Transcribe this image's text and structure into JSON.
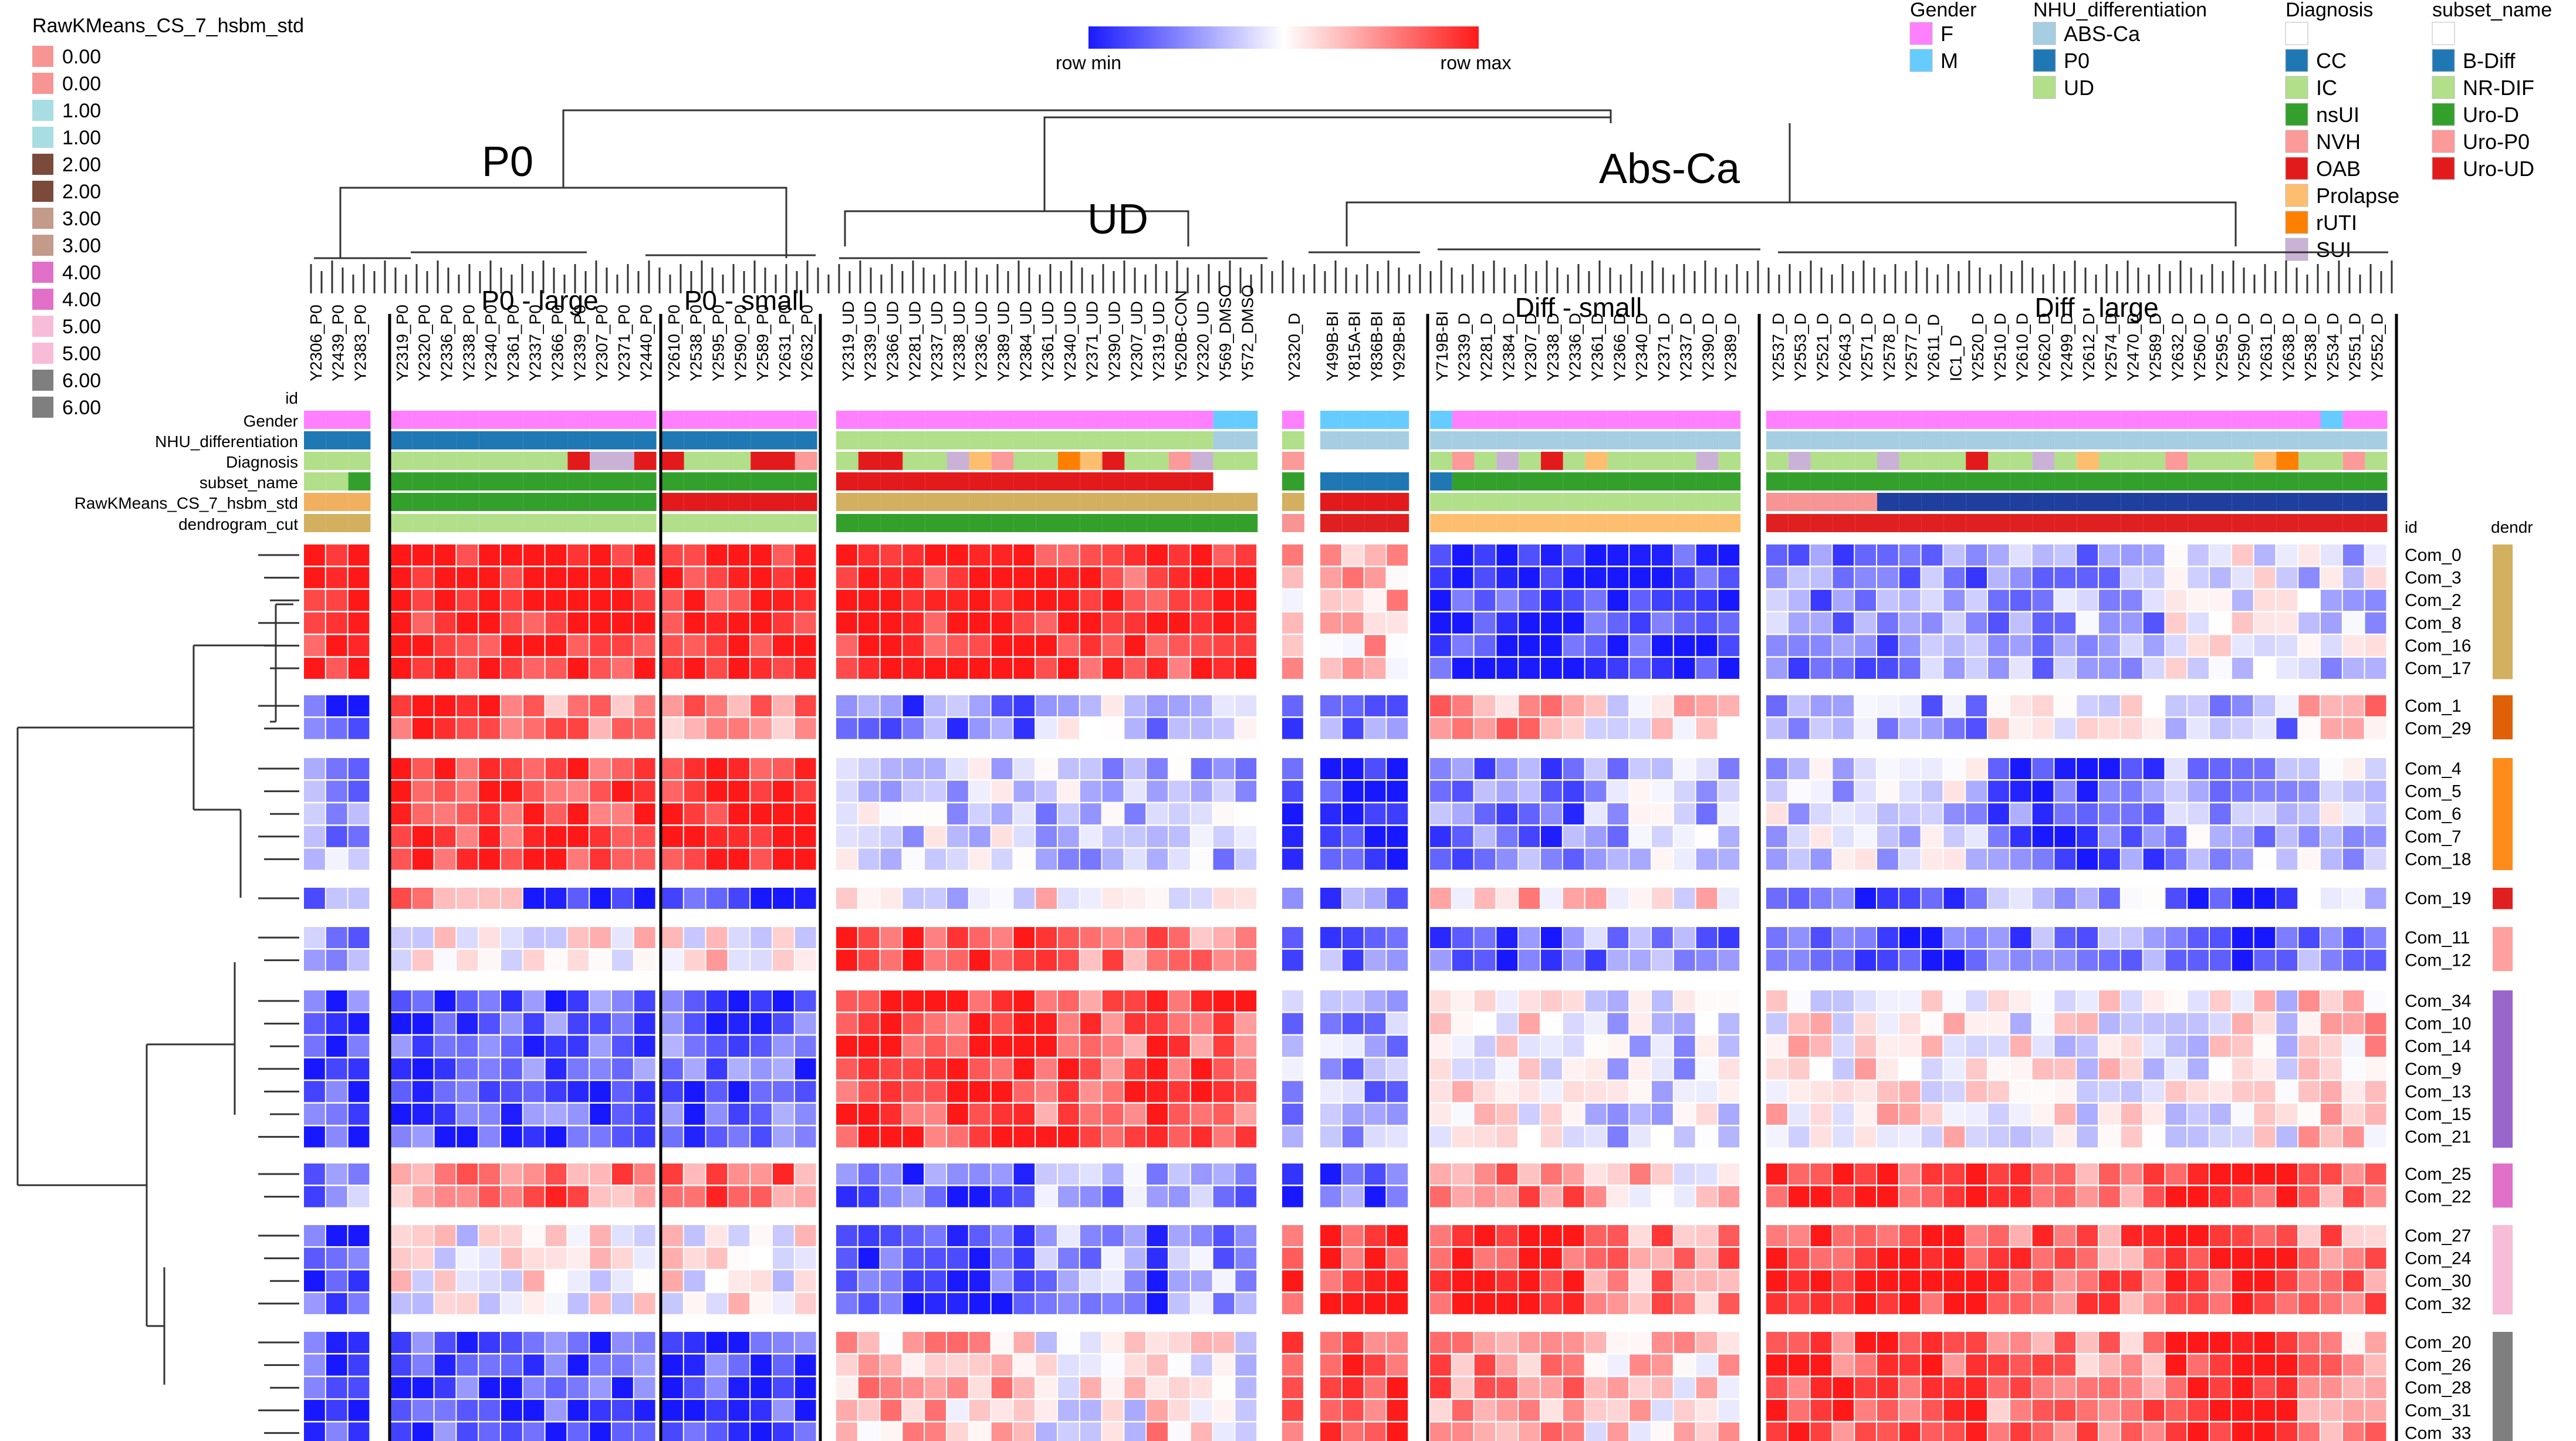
{
  "chart_data": {
    "type": "heatmap",
    "title": "",
    "colorscale": {
      "low_label": "row min",
      "high_label": "row max",
      "low_color": "#1a1aff",
      "mid_color": "#ffffff",
      "high_color": "#ff1a1a"
    },
    "column_header_label": "id",
    "row_header_label": "id",
    "row_annotation_header": "dendr",
    "column_annotation_labels": [
      "id",
      "Gender",
      "NHU_differentiation",
      "Diagnosis",
      "subset_name",
      "RawKMeans_CS_7_hsbm_std",
      "dendrogram_cut"
    ],
    "group_labels": {
      "P0": "P0",
      "UD": "UD",
      "AbsCa": "Abs-Ca"
    },
    "segment_labels": [
      "P0 - large",
      "P0 - small",
      "Diff - small",
      "Diff - large"
    ],
    "col_groups": [
      {
        "label": "",
        "columns": [
          "Y2306_P0",
          "Y2439_P0",
          "Y2383_P0"
        ]
      },
      {
        "label": "P0 - large",
        "columns": [
          "Y2319_P0",
          "Y2320_P0",
          "Y2336_P0",
          "Y2338_P0",
          "Y2340_P0",
          "Y2361_P0",
          "Y2337_P0",
          "Y2366_P0",
          "Y2339_P0",
          "Y2307_P0",
          "Y2371_P0",
          "Y2440_P0"
        ]
      },
      {
        "label": "P0 - small",
        "columns": [
          "Y2610_P0",
          "Y2538_P0",
          "Y2595_P0",
          "Y2590_P0",
          "Y2589_P0",
          "Y2631_P0",
          "Y2632_P0"
        ]
      },
      {
        "label": "",
        "columns": [
          "Y2319_UD",
          "Y2339_UD",
          "Y2366_UD",
          "Y2281_UD",
          "Y2337_UD",
          "Y2338_UD",
          "Y2336_UD",
          "Y2389_UD",
          "Y2384_UD",
          "Y2361_UD",
          "Y2340_UD",
          "Y2371_UD",
          "Y2390_UD",
          "Y2307_UD",
          "Y2319_UD",
          "Y520B-CON",
          "Y2320_UD",
          "Y569_DMSO",
          "Y572_DMSO"
        ]
      },
      {
        "label": "",
        "columns": [
          "Y2320_D"
        ]
      },
      {
        "label": "",
        "columns": [
          "Y499B-BI",
          "Y815A-BI",
          "Y836B-BI",
          "Y929B-BI"
        ]
      },
      {
        "label": "Diff - small",
        "columns": [
          "Y719B-BI",
          "Y2339_D",
          "Y2281_D",
          "Y2384_D",
          "Y2307_D",
          "Y2338_D",
          "Y2336_D",
          "Y2361_D",
          "Y2366_D",
          "Y2340_D",
          "Y2371_D",
          "Y2337_D",
          "Y2390_D",
          "Y2389_D"
        ]
      },
      {
        "label": "Diff - large",
        "columns": [
          "Y2537_D",
          "Y2553_D",
          "Y2521_D",
          "Y2643_D",
          "Y2571_D",
          "Y2578_D",
          "Y2577_D",
          "Y2611_D",
          "IC1_D",
          "Y2520_D",
          "Y2510_D",
          "Y2610_D",
          "Y2620_D",
          "Y2499_D",
          "Y2612_D",
          "Y2574_D",
          "Y2470_D",
          "Y2589_D",
          "Y2632_D",
          "Y2560_D",
          "Y2595_D",
          "Y2590_D",
          "Y2631_D",
          "Y2638_D",
          "Y2538_D",
          "Y2534_D",
          "Y2551_D",
          "Y2552_D"
        ]
      }
    ],
    "row_groups": [
      {
        "rows": [
          "Com_0",
          "Com_3",
          "Com_2",
          "Com_8",
          "Com_16",
          "Com_17"
        ],
        "color": "#d2b060",
        "pattern": [
          1,
          1,
          1,
          1,
          0.9,
          0.3,
          -0.9,
          -0.9,
          -0.5,
          -0.4,
          -0.1,
          -0.2
        ]
      },
      {
        "rows": [
          "Com_1",
          "Com_29"
        ],
        "color": "#e0600a",
        "pattern": [
          -0.8,
          0.8,
          0.5,
          -0.6,
          -0.2,
          -0.6,
          0.4,
          0.1,
          -0.4,
          -0.1,
          -0.4,
          0.4
        ]
      },
      {
        "rows": [
          "Com_4",
          "Com_5",
          "Com_6",
          "Com_7",
          "Com_18"
        ],
        "color": "#ff8c1a",
        "pattern": [
          -0.4,
          0.9,
          0.9,
          -0.2,
          -0.3,
          -0.9,
          -0.6,
          -0.3,
          -0.2,
          -0.7,
          -0.3,
          -0.2
        ]
      },
      {
        "rows": [
          "Com_19"
        ],
        "color": "#e02020",
        "pattern": [
          -0.6,
          0.6,
          -0.9,
          -0.1,
          0.1,
          -0.6,
          0.3,
          0.1,
          -0.8,
          -0.3,
          -0.9,
          -0.3
        ]
      },
      {
        "rows": [
          "Com_11",
          "Com_12"
        ],
        "color": "#ffa0a0",
        "pattern": [
          -0.4,
          0.1,
          0.1,
          0.9,
          0.6,
          -0.6,
          -0.7,
          -0.5,
          -0.8,
          -0.6,
          -0.9,
          -0.5
        ]
      },
      {
        "rows": [
          "Com_34",
          "Com_10",
          "Com_14",
          "Com_9",
          "Com_13",
          "Com_15",
          "Com_21"
        ],
        "color": "#9966cc",
        "pattern": [
          -0.8,
          -0.8,
          -0.7,
          0.9,
          0.7,
          -0.4,
          0.1,
          -0.2,
          0.1,
          0.0,
          0.0,
          0.3
        ]
      },
      {
        "rows": [
          "Com_25",
          "Com_22"
        ],
        "color": "#e070c8",
        "pattern": [
          -0.5,
          0.4,
          0.6,
          -0.7,
          -0.4,
          -0.7,
          0.6,
          0.2,
          0.9,
          0.6,
          0.9,
          0.6
        ]
      },
      {
        "rows": [
          "Com_27",
          "Com_24",
          "Com_30",
          "Com_32"
        ],
        "color": "#f7bcd8",
        "pattern": [
          -0.8,
          0.0,
          0.0,
          -0.8,
          -0.4,
          0.9,
          0.9,
          0.5,
          0.9,
          0.6,
          0.9,
          0.5
        ]
      },
      {
        "rows": [
          "Com_20",
          "Com_26",
          "Com_28",
          "Com_31",
          "Com_33"
        ],
        "color": "#7f7f7f",
        "pattern": [
          -0.8,
          -0.8,
          -0.8,
          0.3,
          0.0,
          0.8,
          0.5,
          0.2,
          0.8,
          0.5,
          0.9,
          0.4
        ]
      }
    ],
    "annotation_legends": [
      {
        "title": "Gender",
        "items": [
          {
            "label": "F",
            "color": "#ff80ff"
          },
          {
            "label": "M",
            "color": "#66ccff"
          }
        ]
      },
      {
        "title": "NHU_differentiation",
        "items": [
          {
            "label": "ABS-Ca",
            "color": "#a6cee3"
          },
          {
            "label": "P0",
            "color": "#1f78b4"
          },
          {
            "label": "UD",
            "color": "#b2df8a"
          }
        ]
      },
      {
        "title": "Diagnosis",
        "items": [
          {
            "label": "",
            "color": "#ffffff"
          },
          {
            "label": "CC",
            "color": "#1f78b4"
          },
          {
            "label": "IC",
            "color": "#b2df8a"
          },
          {
            "label": "nsUI",
            "color": "#33a02c"
          },
          {
            "label": "NVH",
            "color": "#fb9a99"
          },
          {
            "label": "OAB",
            "color": "#e31a1c"
          },
          {
            "label": "Prolapse",
            "color": "#fdbf6f"
          },
          {
            "label": "rUTI",
            "color": "#ff7f00"
          },
          {
            "label": "SUI",
            "color": "#cab2d6"
          }
        ]
      },
      {
        "title": "subset_name",
        "items": [
          {
            "label": "",
            "color": "#ffffff"
          },
          {
            "label": "B-Diff",
            "color": "#1f78b4"
          },
          {
            "label": "NR-DIF",
            "color": "#b2df8a"
          },
          {
            "label": "Uro-D",
            "color": "#33a02c"
          },
          {
            "label": "Uro-P0",
            "color": "#fb9a99"
          },
          {
            "label": "Uro-UD",
            "color": "#e31a1c"
          }
        ]
      }
    ],
    "kmeans_legend": {
      "title": "RawKMeans_CS_7_hsbm_std",
      "items": [
        {
          "label": "0.00",
          "color": "#f79494"
        },
        {
          "label": "0.00",
          "color": "#f79494"
        },
        {
          "label": "1.00",
          "color": "#a8dde3"
        },
        {
          "label": "1.00",
          "color": "#a8dde3"
        },
        {
          "label": "2.00",
          "color": "#7a4a3a"
        },
        {
          "label": "2.00",
          "color": "#7a4a3a"
        },
        {
          "label": "3.00",
          "color": "#c49a8a"
        },
        {
          "label": "3.00",
          "color": "#c49a8a"
        },
        {
          "label": "4.00",
          "color": "#e070c8"
        },
        {
          "label": "4.00",
          "color": "#e070c8"
        },
        {
          "label": "5.00",
          "color": "#f7bcd8"
        },
        {
          "label": "5.00",
          "color": "#f7bcd8"
        },
        {
          "label": "6.00",
          "color": "#7f7f7f"
        },
        {
          "label": "6.00",
          "color": "#7f7f7f"
        }
      ]
    },
    "colors": {
      "gender_F": "#ff80ff",
      "gender_M": "#66ccff",
      "nhu_abs": "#a6cee3",
      "nhu_p0": "#1f78b4",
      "nhu_ud": "#b2df8a",
      "dendro_p0": "#f0b060",
      "dendro_ud": "#33a02c",
      "dendro_ud_red": "#f79494",
      "dendro_abs": "#fdbf6f",
      "dendro_diff_large": "#e02020",
      "kmeans_p0": "#33a02c",
      "kmeans_ud": "#d2b060",
      "kmeans_abs": "#e31a1c",
      "kmeans_diff": "#1f3f9f"
    }
  }
}
